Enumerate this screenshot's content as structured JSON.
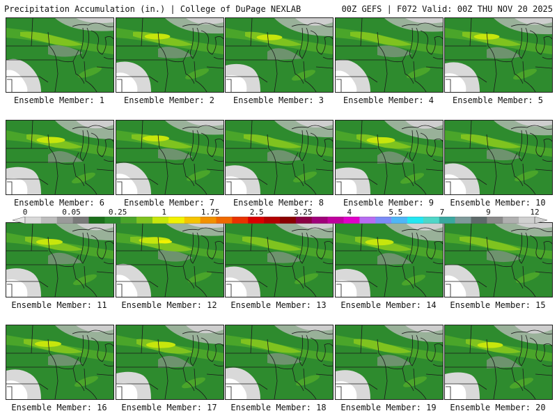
{
  "header": {
    "left": "Precipitation Accumulation (in.) | College of DuPage NEXLAB",
    "right": "00Z GEFS | F072 Valid: 00Z THU NOV 20 2025"
  },
  "legend": {
    "labels": [
      "0",
      "0.05",
      "0.25",
      "1",
      "1.75",
      "2.5",
      "3.25",
      "4",
      "5.5",
      "7",
      "9",
      "12"
    ],
    "colors": [
      "#d9d9d9",
      "#bdbdbd",
      "#9a9a9a",
      "#7a7a7a",
      "#1b6f1b",
      "#2e8b2e",
      "#4aa52a",
      "#7fc31f",
      "#c7e60c",
      "#f2f200",
      "#f5c400",
      "#f29100",
      "#f06a00",
      "#e83200",
      "#d90000",
      "#b30000",
      "#8a0000",
      "#8b0045",
      "#a0007a",
      "#c0009e",
      "#e000c8",
      "#b76cf2",
      "#7c8cf7",
      "#4fb6f7",
      "#24e6f2",
      "#4fd6c8",
      "#3aa8a0",
      "#7f9a9a",
      "#5e6a6a",
      "#8a8a8a",
      "#b0b0b0",
      "#d0d0d0"
    ]
  },
  "members": [
    {
      "label": "Ensemble Member: 1",
      "intensity": 0.55
    },
    {
      "label": "Ensemble Member: 2",
      "intensity": 0.6
    },
    {
      "label": "Ensemble Member: 3",
      "intensity": 0.6
    },
    {
      "label": "Ensemble Member: 4",
      "intensity": 0.5
    },
    {
      "label": "Ensemble Member: 5",
      "intensity": 0.6
    },
    {
      "label": "Ensemble Member: 6",
      "intensity": 0.75
    },
    {
      "label": "Ensemble Member: 7",
      "intensity": 0.65
    },
    {
      "label": "Ensemble Member: 8",
      "intensity": 0.5
    },
    {
      "label": "Ensemble Member: 9",
      "intensity": 0.75
    },
    {
      "label": "Ensemble Member: 10",
      "intensity": 0.55
    },
    {
      "label": "Ensemble Member: 11",
      "intensity": 0.65
    },
    {
      "label": "Ensemble Member: 12",
      "intensity": 0.9
    },
    {
      "label": "Ensemble Member: 13",
      "intensity": 0.55
    },
    {
      "label": "Ensemble Member: 14",
      "intensity": 0.75
    },
    {
      "label": "Ensemble Member: 15",
      "intensity": 0.45
    },
    {
      "label": "Ensemble Member: 16",
      "intensity": 0.65
    },
    {
      "label": "Ensemble Member: 17",
      "intensity": 0.8
    },
    {
      "label": "Ensemble Member: 18",
      "intensity": 0.45
    },
    {
      "label": "Ensemble Member: 19",
      "intensity": 0.55
    },
    {
      "label": "Ensemble Member: 20",
      "intensity": 0.6
    }
  ]
}
